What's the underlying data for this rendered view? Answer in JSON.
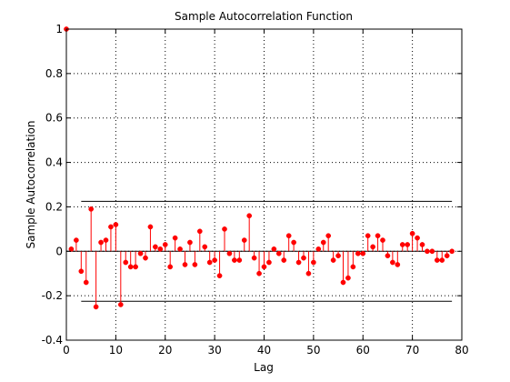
{
  "chart_data": {
    "type": "stem",
    "title": "Sample Autocorrelation Function",
    "xlabel": "Lag",
    "ylabel": "Sample Autocorrelation",
    "xlim": [
      0,
      80
    ],
    "ylim": [
      -0.4,
      1
    ],
    "xticks": [
      0,
      10,
      20,
      30,
      40,
      50,
      60,
      70,
      80
    ],
    "yticks": [
      -0.4,
      -0.2,
      0,
      0.2,
      0.4,
      0.6,
      0.8,
      1
    ],
    "grid": true,
    "bounds": [
      0.225,
      -0.225
    ],
    "colors": {
      "stems": "#ff0000",
      "bounds": "#000000",
      "zero_line": "#000000"
    },
    "lags": [
      0,
      1,
      2,
      3,
      4,
      5,
      6,
      7,
      8,
      9,
      10,
      11,
      12,
      13,
      14,
      15,
      16,
      17,
      18,
      19,
      20,
      21,
      22,
      23,
      24,
      25,
      26,
      27,
      28,
      29,
      30,
      31,
      32,
      33,
      34,
      35,
      36,
      37,
      38,
      39,
      40,
      41,
      42,
      43,
      44,
      45,
      46,
      47,
      48,
      49,
      50,
      51,
      52,
      53,
      54,
      55,
      56,
      57,
      58,
      59,
      60,
      61,
      62,
      63,
      64,
      65,
      66,
      67,
      68,
      69,
      70,
      71,
      72,
      73,
      74,
      75,
      76,
      77,
      78
    ],
    "values": [
      1.0,
      0.01,
      0.05,
      -0.09,
      -0.14,
      0.19,
      -0.25,
      0.04,
      0.05,
      0.11,
      0.12,
      -0.24,
      -0.05,
      -0.07,
      -0.07,
      -0.01,
      -0.03,
      0.11,
      0.02,
      0.01,
      0.03,
      -0.07,
      0.06,
      0.01,
      -0.06,
      0.04,
      -0.06,
      0.09,
      0.02,
      -0.05,
      -0.04,
      -0.11,
      0.1,
      -0.01,
      -0.04,
      -0.04,
      0.05,
      0.16,
      -0.03,
      -0.1,
      -0.07,
      -0.05,
      0.01,
      -0.01,
      -0.04,
      0.07,
      0.04,
      -0.05,
      -0.03,
      -0.1,
      -0.05,
      0.01,
      0.04,
      0.07,
      -0.04,
      -0.02,
      -0.14,
      -0.12,
      -0.07,
      -0.01,
      -0.01,
      0.07,
      0.02,
      0.07,
      0.05,
      -0.02,
      -0.05,
      -0.06,
      0.03,
      0.03,
      0.08,
      0.06,
      0.03,
      0.0,
      0.0,
      -0.04,
      -0.04,
      -0.02,
      0.0
    ]
  }
}
